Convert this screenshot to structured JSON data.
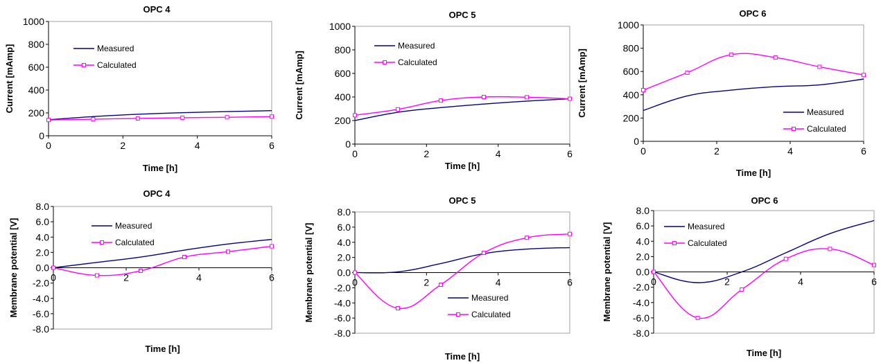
{
  "chart_data": [
    {
      "type": "line",
      "title": "OPC 4",
      "xlabel": "Time [h]",
      "ylabel": "Current [mAmp]",
      "xlim": [
        0,
        6
      ],
      "ylim": [
        0,
        1000
      ],
      "x_ticks": [
        "0",
        "2",
        "4",
        "6"
      ],
      "y_ticks": [
        "0",
        "200",
        "400",
        "600",
        "800",
        "1000"
      ],
      "legend_position": "top-left",
      "series": [
        {
          "name": "Measured",
          "color": "#000080",
          "marker": "none",
          "x": [
            0,
            1.2,
            2.4,
            3.6,
            4.8,
            6
          ],
          "y": [
            140,
            168,
            188,
            202,
            212,
            220
          ]
        },
        {
          "name": "Calculated",
          "color": "#ff00ff",
          "marker": "square",
          "x": [
            0,
            1.2,
            2.4,
            3.6,
            4.8,
            6
          ],
          "y": [
            138,
            145,
            152,
            158,
            162,
            168
          ]
        }
      ]
    },
    {
      "type": "line",
      "title": "OPC 5",
      "xlabel": "Time [h]",
      "ylabel": "Current [mAmp]",
      "xlim": [
        0,
        6
      ],
      "ylim": [
        0,
        1000
      ],
      "x_ticks": [
        "0",
        "2",
        "4",
        "6"
      ],
      "y_ticks": [
        "0",
        "200",
        "400",
        "600",
        "800",
        "1000"
      ],
      "legend_position": "top-left",
      "series": [
        {
          "name": "Measured",
          "color": "#000080",
          "marker": "none",
          "x": [
            0,
            1.2,
            2.4,
            3.6,
            4.8,
            6
          ],
          "y": [
            200,
            270,
            310,
            340,
            365,
            385
          ]
        },
        {
          "name": "Calculated",
          "color": "#ff00ff",
          "marker": "square",
          "x": [
            0,
            1.2,
            2.4,
            3.6,
            4.8,
            6
          ],
          "y": [
            245,
            295,
            370,
            400,
            398,
            385
          ]
        }
      ]
    },
    {
      "type": "line",
      "title": "OPC 6",
      "xlabel": "Time [h]",
      "ylabel": "Current [mAmp]",
      "xlim": [
        0,
        6
      ],
      "ylim": [
        0,
        1000
      ],
      "x_ticks": [
        "0",
        "2",
        "4",
        "6"
      ],
      "y_ticks": [
        "0",
        "200",
        "400",
        "600",
        "800",
        "1000"
      ],
      "legend_position": "bottom-right",
      "series": [
        {
          "name": "Measured",
          "color": "#000080",
          "marker": "none",
          "x": [
            0,
            1.2,
            2.4,
            3.6,
            4.8,
            6
          ],
          "y": [
            265,
            390,
            440,
            470,
            485,
            535
          ]
        },
        {
          "name": "Calculated",
          "color": "#ff00ff",
          "marker": "square",
          "x": [
            0,
            1.2,
            2.4,
            3.6,
            4.8,
            6
          ],
          "y": [
            440,
            590,
            745,
            720,
            640,
            570
          ]
        }
      ]
    },
    {
      "type": "line",
      "title": "OPC 4",
      "xlabel": "Time [h]",
      "ylabel": "Membrane potential  [V]",
      "xlim": [
        0,
        6
      ],
      "ylim": [
        -8,
        8
      ],
      "x_ticks": [
        "0",
        "2",
        "4",
        "6"
      ],
      "y_ticks": [
        "-8.0",
        "-6.0",
        "-4.0",
        "-2.0",
        "0.0",
        "2.0",
        "4.0",
        "6.0",
        "8.0"
      ],
      "legend_position": "top-left",
      "series": [
        {
          "name": "Measured",
          "color": "#000080",
          "marker": "none",
          "x": [
            0,
            1.2,
            2.4,
            3.6,
            4.8,
            6
          ],
          "y": [
            0.0,
            0.7,
            1.4,
            2.3,
            3.1,
            3.7
          ]
        },
        {
          "name": "Calculated",
          "color": "#ff00ff",
          "marker": "square",
          "x": [
            0,
            1.2,
            2.4,
            3.6,
            4.8,
            6
          ],
          "y": [
            0.0,
            -1.0,
            -0.4,
            1.4,
            2.1,
            2.8
          ]
        }
      ]
    },
    {
      "type": "line",
      "title": "OPC 5",
      "xlabel": "Time [h]",
      "ylabel": "Membrane potential  [V]",
      "xlim": [
        0,
        6
      ],
      "ylim": [
        -8,
        8
      ],
      "x_ticks": [
        "0",
        "2",
        "4",
        "6"
      ],
      "y_ticks": [
        "-8.0",
        "-6.0",
        "-4.0",
        "-2.0",
        "0.0",
        "2.0",
        "4.0",
        "6.0",
        "8.0"
      ],
      "legend_position": "bottom-right",
      "series": [
        {
          "name": "Measured",
          "color": "#000080",
          "marker": "none",
          "x": [
            0,
            1.2,
            2.4,
            3.6,
            4.8,
            6
          ],
          "y": [
            0.0,
            0.1,
            1.2,
            2.5,
            3.1,
            3.3
          ]
        },
        {
          "name": "Calculated",
          "color": "#ff00ff",
          "marker": "square",
          "x": [
            0,
            1.2,
            2.4,
            3.6,
            4.8,
            6
          ],
          "y": [
            0.0,
            -4.7,
            -1.6,
            2.6,
            4.6,
            5.1
          ]
        }
      ]
    },
    {
      "type": "line",
      "title": "OPC 6",
      "xlabel": "Time [h]",
      "ylabel": "Membrane potential  [V]",
      "xlim": [
        0,
        6
      ],
      "ylim": [
        -8,
        8
      ],
      "x_ticks": [
        "0",
        "2",
        "4",
        "6"
      ],
      "y_ticks": [
        "-8.0",
        "-6.0",
        "-4.0",
        "-2.0",
        "0.0",
        "2.0",
        "4.0",
        "6.0",
        "8.0"
      ],
      "legend_position": "top-left",
      "series": [
        {
          "name": "Measured",
          "color": "#000080",
          "marker": "none",
          "x": [
            0,
            1.2,
            2.4,
            3.6,
            4.8,
            6
          ],
          "y": [
            0.0,
            -1.4,
            0.0,
            2.5,
            5.0,
            6.7
          ]
        },
        {
          "name": "Calculated",
          "color": "#ff00ff",
          "marker": "square",
          "x": [
            0,
            1.2,
            2.4,
            3.6,
            4.8,
            6
          ],
          "y": [
            0.0,
            -6.0,
            -2.3,
            1.7,
            3.0,
            0.9
          ]
        }
      ]
    }
  ]
}
